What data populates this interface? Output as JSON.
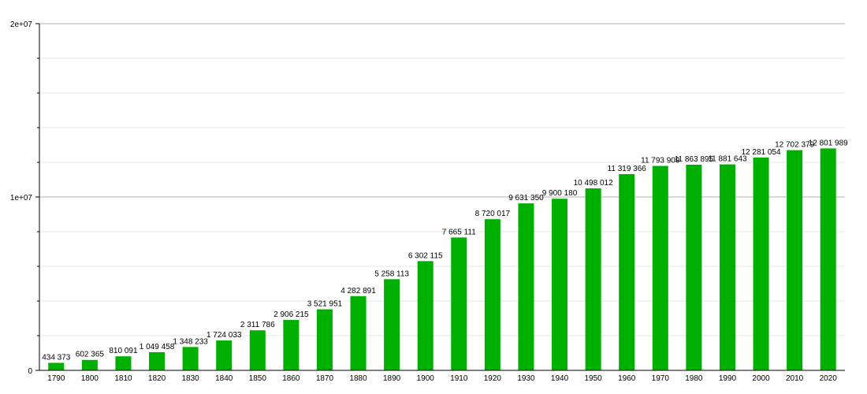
{
  "chart_data": {
    "type": "bar",
    "title": "",
    "xlabel": "",
    "ylabel": "",
    "ylim": [
      0,
      20000000
    ],
    "grid": true,
    "legend": "none",
    "bar_color": "#00b000",
    "categories": [
      "1790",
      "1800",
      "1810",
      "1820",
      "1830",
      "1840",
      "1850",
      "1860",
      "1870",
      "1880",
      "1890",
      "1900",
      "1910",
      "1920",
      "1930",
      "1940",
      "1950",
      "1960",
      "1970",
      "1980",
      "1990",
      "2000",
      "2010",
      "2020"
    ],
    "values": [
      434373,
      602365,
      810091,
      1049458,
      1348233,
      1724033,
      2311786,
      2906215,
      3521951,
      4282891,
      5258113,
      6302115,
      7665111,
      8720017,
      9631350,
      9900180,
      10498012,
      11319366,
      11793909,
      11863895,
      11881643,
      12281054,
      12702379,
      12801989
    ],
    "data_labels": [
      "434 373",
      "602 365",
      "810 091",
      "1 049 458",
      "1 348 233",
      "1 724 033",
      "2 311 786",
      "2 906 215",
      "3 521 951",
      "4 282 891",
      "5 258 113",
      "6 302 115",
      "7 665 111",
      "8 720 017",
      "9 631 350",
      "9 900 180",
      "10 498 012",
      "11 319 366",
      "11 793 909",
      "11 863 895",
      "11 881 643",
      "12 281 054",
      "12 702 379",
      "12 801 989"
    ],
    "y_ticks": [
      {
        "value": 0,
        "label": "0"
      },
      {
        "value": 10000000,
        "label": "1e+07"
      },
      {
        "value": 20000000,
        "label": "2e+07"
      }
    ],
    "minor_grid_step": 2000000
  }
}
